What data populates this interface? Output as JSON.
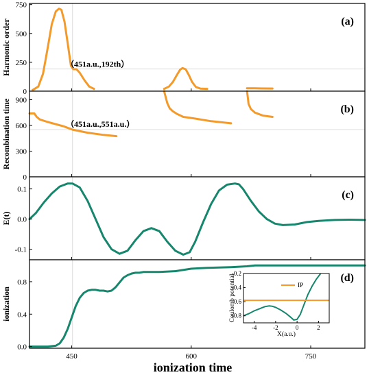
{
  "chart_data": {
    "type": "line",
    "xlabel": "ionization time",
    "xlim": [
      397,
      818
    ],
    "xticks": [
      450,
      600,
      750
    ],
    "x_reference_line": 451,
    "colors": {
      "orange": "#f39a2a",
      "green": "#16866d",
      "frame": "#000000",
      "grid": "#dcdcdc"
    },
    "panels": [
      {
        "label": "(a)",
        "ylabel": "Harmonic order",
        "ylim": [
          0,
          760
        ],
        "yticks": [
          0,
          250,
          500,
          750
        ],
        "color": "#f39a2a",
        "annotation": "（451a.u.,192th）",
        "h_reference_line": 192,
        "segments": [
          {
            "x": [
              401,
              408,
              414,
              420,
              425,
              430,
              434,
              437,
              441,
              445,
              449,
              452,
              456,
              460,
              466,
              472,
              478
            ],
            "y": [
              10,
              40,
              150,
              380,
              580,
              690,
              715,
              705,
              600,
              410,
              220,
              190,
              190,
              160,
              95,
              40,
              20
            ]
          },
          {
            "x": [
              566,
              572,
              577,
              582,
              586,
              589,
              593,
              597,
              601,
              606,
              612,
              620
            ],
            "y": [
              20,
              40,
              80,
              140,
              185,
              200,
              190,
              140,
              80,
              35,
              22,
              20
            ]
          },
          {
            "x": [
              670,
              680,
              690,
              702
            ],
            "y": [
              25,
              25,
              24,
              23
            ]
          }
        ]
      },
      {
        "label": "(b)",
        "ylabel": "Recombination time",
        "ylim": [
          0,
          1000
        ],
        "yticks": [
          0,
          300,
          600,
          900
        ],
        "color": "#f39a2a",
        "annotation": "（451a.u.,551a.u.）",
        "h_reference_line": 551,
        "segments": [
          {
            "x": [
              397,
              403,
              406,
              410,
              420,
              440,
              451,
              470,
              490,
              506
            ],
            "y": [
              740,
              740,
              700,
              670,
              640,
              590,
              551,
              515,
              490,
              475
            ]
          },
          {
            "x": [
              566,
              568,
              570,
              573,
              577,
              582,
              590,
              605,
              625,
              650
            ],
            "y": [
              1000,
              930,
              860,
              800,
              765,
              735,
              700,
              680,
              650,
              625
            ]
          },
          {
            "x": [
              670,
              671,
              672,
              675,
              680,
              690,
              702
            ],
            "y": [
              1000,
              930,
              850,
              790,
              750,
              715,
              700
            ]
          }
        ]
      },
      {
        "label": "(c)",
        "ylabel": "E(t)",
        "ylim": [
          -0.135,
          0.14
        ],
        "yticks": [
          -0.1,
          0.0,
          0.1
        ],
        "color": "#16866d",
        "segments": [
          {
            "x": [
              397,
              405,
              415,
              425,
              435,
              445,
              451,
              460,
              470,
              480,
              490,
              500,
              510,
              520,
              530,
              540,
              550,
              560,
              570,
              580,
              590,
              598,
              605,
              615,
              625,
              635,
              645,
              655,
              660,
              665,
              675,
              685,
              695,
              705,
              715,
              730,
              745,
              760,
              780,
              800,
              818
            ],
            "y": [
              0.0,
              0.02,
              0.055,
              0.085,
              0.108,
              0.118,
              0.118,
              0.105,
              0.06,
              0.0,
              -0.06,
              -0.1,
              -0.115,
              -0.105,
              -0.07,
              -0.04,
              -0.03,
              -0.04,
              -0.075,
              -0.105,
              -0.118,
              -0.11,
              -0.075,
              -0.01,
              0.05,
              0.095,
              0.114,
              0.118,
              0.115,
              0.1,
              0.06,
              0.025,
              0.0,
              -0.015,
              -0.02,
              -0.018,
              -0.01,
              -0.006,
              -0.003,
              -0.002,
              -0.003
            ]
          }
        ]
      },
      {
        "label": "(d)",
        "ylabel": "ionization",
        "ylim": [
          -0.02,
          1.07
        ],
        "yticks": [
          0.0,
          0.4,
          0.8
        ],
        "color": "#16866d",
        "segments": [
          {
            "x": [
              397,
              420,
              430,
              435,
              440,
              445,
              450,
              455,
              460,
              465,
              470,
              475,
              480,
              485,
              490,
              495,
              500,
              505,
              510,
              515,
              520,
              525,
              530,
              535,
              540,
              560,
              580,
              600,
              620,
              650,
              670,
              680,
              700,
              750,
              818
            ],
            "y": [
              0.0,
              0.0,
              0.01,
              0.04,
              0.11,
              0.22,
              0.36,
              0.5,
              0.6,
              0.66,
              0.69,
              0.7,
              0.7,
              0.69,
              0.69,
              0.68,
              0.69,
              0.73,
              0.79,
              0.85,
              0.88,
              0.9,
              0.91,
              0.91,
              0.92,
              0.92,
              0.93,
              0.96,
              0.97,
              0.98,
              0.99,
              1.0,
              1.0,
              1.0,
              1.0
            ]
          }
        ]
      }
    ],
    "inset": {
      "ylabel": "Coulomb potential",
      "xlabel": "X(a.u.)",
      "xlim": [
        -5,
        3
      ],
      "ylim": [
        -0.9,
        -0.2
      ],
      "xticks": [
        -4,
        -2,
        0,
        2
      ],
      "yticks": [
        -0.8,
        -0.6,
        -0.4,
        -0.2
      ],
      "legend": "IP",
      "ip_level": -0.58,
      "ip_color": "#f39a2a",
      "curve_color": "#16866d",
      "curve_x": [
        -5,
        -4.5,
        -4,
        -3.5,
        -3,
        -2.6,
        -2.3,
        -2,
        -1.5,
        -1,
        -0.6,
        -0.3,
        0,
        0.3,
        0.6,
        1,
        1.4,
        1.8,
        2.2
      ],
      "curve_y": [
        -0.8,
        -0.77,
        -0.73,
        -0.7,
        -0.67,
        -0.66,
        -0.665,
        -0.68,
        -0.72,
        -0.77,
        -0.82,
        -0.86,
        -0.85,
        -0.78,
        -0.66,
        -0.5,
        -0.38,
        -0.28,
        -0.2
      ]
    }
  }
}
